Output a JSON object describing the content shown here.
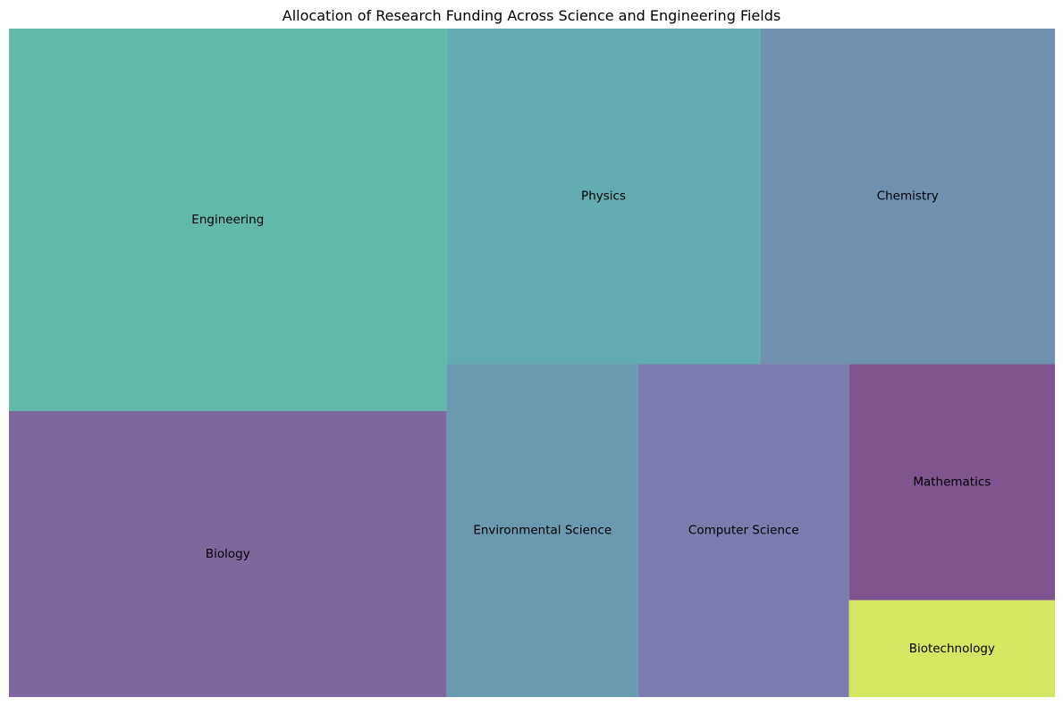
{
  "chart_data": {
    "type": "treemap",
    "title": "Allocation of Research Funding Across Science and Engineering Fields",
    "categories": [
      "Engineering",
      "Biology",
      "Physics",
      "Chemistry",
      "Environmental Science",
      "Computer Science",
      "Mathematics",
      "Biotechnology"
    ],
    "values": [
      21.0,
      15.7,
      13.2,
      12.4,
      8.0,
      8.8,
      6.1,
      2.5
    ],
    "colors": [
      "#62b9aa",
      "#7e679c",
      "#63adb0",
      "#7090b0",
      "#6a9aae",
      "#7a7dad",
      "#7e558e",
      "#d5e762"
    ],
    "axes_visible": false,
    "legend": "none"
  }
}
